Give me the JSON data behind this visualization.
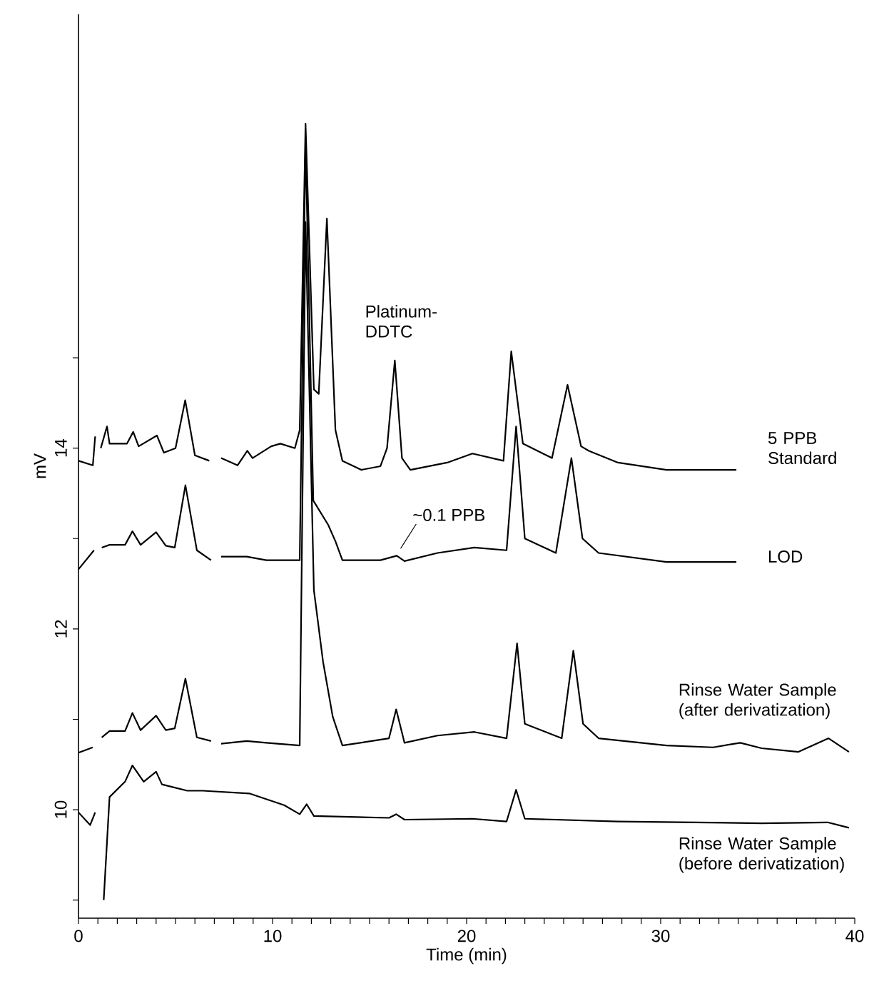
{
  "chart_data": {
    "type": "line",
    "xlabel": "Time (min)",
    "ylabel": "mV",
    "xlim": [
      0,
      40
    ],
    "ylim": [
      8.8,
      18.8
    ],
    "xticks": [
      0,
      {
        "value": 1,
        "label": null
      },
      {
        "value": 2,
        "label": null
      },
      {
        "value": 3,
        "label": null
      },
      {
        "value": 4,
        "label": null
      },
      {
        "value": 5,
        "label": null
      },
      {
        "value": 6,
        "label": null
      },
      {
        "value": 7,
        "label": null
      },
      {
        "value": 8,
        "label": null
      },
      {
        "value": 9,
        "label": null
      },
      10,
      {
        "value": 11,
        "label": null
      },
      {
        "value": 12,
        "label": null
      },
      {
        "value": 13,
        "label": null
      },
      {
        "value": 14,
        "label": null
      },
      {
        "value": 15,
        "label": null
      },
      {
        "value": 16,
        "label": null
      },
      {
        "value": 17,
        "label": null
      },
      {
        "value": 18,
        "label": null
      },
      {
        "value": 19,
        "label": null
      },
      20,
      {
        "value": 21,
        "label": null
      },
      {
        "value": 22,
        "label": null
      },
      {
        "value": 23,
        "label": null
      },
      {
        "value": 24,
        "label": null
      },
      {
        "value": 25,
        "label": null
      },
      {
        "value": 26,
        "label": null
      },
      {
        "value": 27,
        "label": null
      },
      {
        "value": 28,
        "label": null
      },
      {
        "value": 29,
        "label": null
      },
      30,
      {
        "value": 31,
        "label": null
      },
      {
        "value": 32,
        "label": null
      },
      {
        "value": 33,
        "label": null
      },
      {
        "value": 34,
        "label": null
      },
      {
        "value": 35,
        "label": null
      },
      {
        "value": 36,
        "label": null
      },
      {
        "value": 37,
        "label": null
      },
      {
        "value": 38,
        "label": null
      },
      {
        "value": 39,
        "label": null
      },
      40
    ],
    "yticks": [
      {
        "value": 9,
        "label": null
      },
      10,
      {
        "value": 11,
        "label": null
      },
      12,
      {
        "value": 13,
        "label": null
      },
      14,
      {
        "value": 15,
        "label": null
      }
    ],
    "line_style": "solid",
    "series": [
      {
        "name": "5 PPB Standard",
        "color": "#000000",
        "x": [
          0,
          0.74,
          0.86,
          0.96,
          1.05,
          1.15,
          1.47,
          1.6,
          2.5,
          2.82,
          3.1,
          4.04,
          4.4,
          5.0,
          5.5,
          6.0,
          6.74,
          7.05,
          7.15,
          7.35,
          8.2,
          8.7,
          8.97,
          9.93,
          10.4,
          11.15,
          11.4,
          11.7,
          12.13,
          12.38,
          12.8,
          13.24,
          13.6,
          14.57,
          15.56,
          15.9,
          16.3,
          16.67,
          17.1,
          19,
          20.3,
          21.9,
          22.3,
          22.9,
          24.4,
          25.2,
          25.9,
          26.3,
          27.8,
          30.3,
          33.9
        ],
        "values": [
          13.86,
          13.81,
          14.13,
          null,
          null,
          14.0,
          14.24,
          14.05,
          14.05,
          14.18,
          14.02,
          14.14,
          13.95,
          14.0,
          14.53,
          13.92,
          13.86,
          null,
          null,
          13.89,
          13.81,
          13.97,
          13.89,
          14.02,
          14.05,
          14.0,
          14.2,
          17.59,
          14.65,
          14.6,
          16.54,
          14.2,
          13.86,
          13.76,
          13.8,
          14.0,
          14.97,
          13.89,
          13.76,
          13.84,
          13.94,
          13.86,
          15.07,
          14.05,
          13.89,
          14.7,
          14.02,
          13.97,
          13.84,
          13.76,
          13.76
        ]
      },
      {
        "name": "LOD",
        "color": "#000000",
        "x": [
          0,
          0.8,
          0.96,
          1.05,
          1.2,
          1.6,
          2.4,
          2.78,
          3.2,
          4.0,
          4.5,
          4.96,
          5.51,
          6.1,
          6.83,
          7.05,
          7.15,
          7.35,
          8.67,
          9.68,
          11.4,
          11.7,
          12.1,
          12.87,
          13.24,
          13.6,
          15.56,
          16.4,
          16.8,
          18.5,
          20.4,
          22.06,
          22.55,
          23.0,
          24.6,
          25.4,
          25.97,
          26.8,
          30.3,
          33.9
        ],
        "values": [
          12.66,
          12.87,
          null,
          null,
          12.9,
          12.93,
          12.93,
          13.08,
          12.93,
          13.07,
          12.92,
          12.9,
          13.59,
          12.87,
          12.76,
          null,
          null,
          12.8,
          12.8,
          12.76,
          12.76,
          17.4,
          13.42,
          13.15,
          12.97,
          12.76,
          12.76,
          12.81,
          12.75,
          12.84,
          12.9,
          12.87,
          14.24,
          13.0,
          12.84,
          13.89,
          13.0,
          12.84,
          12.74,
          12.74
        ]
      },
      {
        "name": "Rinse Water Sample (after derivatization)",
        "color": "#000000",
        "x": [
          0,
          0.74,
          0.96,
          1.05,
          1.2,
          1.6,
          2.4,
          2.78,
          3.2,
          4.0,
          4.5,
          4.96,
          5.51,
          6.1,
          6.83,
          7.05,
          7.15,
          7.35,
          8.67,
          9.68,
          11.4,
          11.7,
          12.13,
          12.6,
          13.1,
          13.6,
          16.0,
          16.37,
          16.8,
          18.5,
          20.4,
          22.06,
          22.6,
          23.0,
          24.9,
          25.5,
          26.0,
          26.8,
          30.3,
          32.7,
          34.1,
          35.2,
          37.1,
          38.65,
          39.7
        ],
        "values": [
          10.63,
          10.69,
          null,
          null,
          10.8,
          10.87,
          10.87,
          11.07,
          10.88,
          11.04,
          10.88,
          10.9,
          11.45,
          10.8,
          10.76,
          null,
          null,
          10.73,
          10.76,
          10.74,
          10.71,
          16.5,
          12.43,
          11.64,
          11.03,
          10.71,
          10.79,
          11.11,
          10.74,
          10.82,
          10.86,
          10.79,
          11.84,
          10.95,
          10.79,
          11.76,
          10.95,
          10.79,
          10.71,
          10.69,
          10.74,
          10.68,
          10.64,
          10.79,
          10.64
        ]
      },
      {
        "name": "Rinse Water Sample (before derivatization)",
        "color": "#000000",
        "x": [
          0,
          0.6,
          0.86,
          0.96,
          1.05,
          1.3,
          1.6,
          2.4,
          2.78,
          3.36,
          4.0,
          4.3,
          5.6,
          6.4,
          8.8,
          10.6,
          11.4,
          11.76,
          12.13,
          16.0,
          16.37,
          16.8,
          20.3,
          22.06,
          22.55,
          23.0,
          27.8,
          35.2,
          38.6,
          39.7
        ],
        "values": [
          9.97,
          9.83,
          9.97,
          null,
          null,
          9.0,
          10.14,
          10.31,
          10.49,
          10.31,
          10.42,
          10.28,
          10.21,
          10.21,
          10.18,
          10.05,
          9.95,
          10.06,
          9.93,
          9.91,
          9.95,
          9.89,
          9.9,
          9.87,
          10.22,
          9.9,
          9.87,
          9.85,
          9.86,
          9.8
        ]
      }
    ],
    "annotations": [
      {
        "text": "Platinum-DDTC",
        "x": 16.3,
        "y": 14.97
      },
      {
        "text": "~0.1 PPB",
        "x": 16.4,
        "y": 12.81
      }
    ]
  }
}
